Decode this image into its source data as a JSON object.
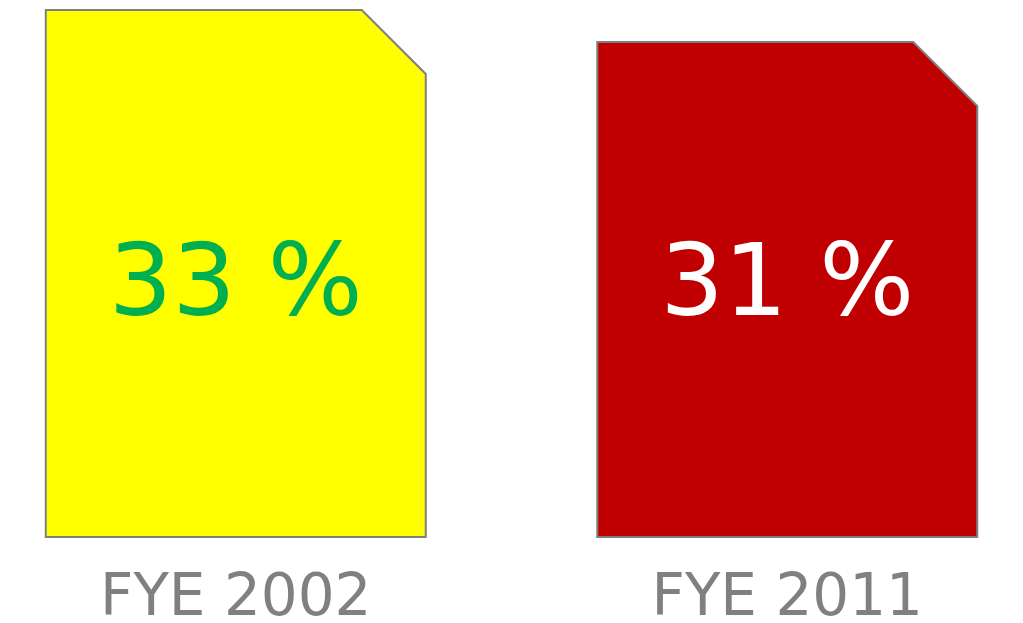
{
  "chart_data": {
    "type": "other",
    "categories": [
      "FYE 2002",
      "FYE 2011"
    ],
    "values": [
      33,
      31
    ],
    "value_labels": [
      "33 %",
      "31 %"
    ],
    "colors": [
      "#ffff00",
      "#c00000"
    ]
  }
}
